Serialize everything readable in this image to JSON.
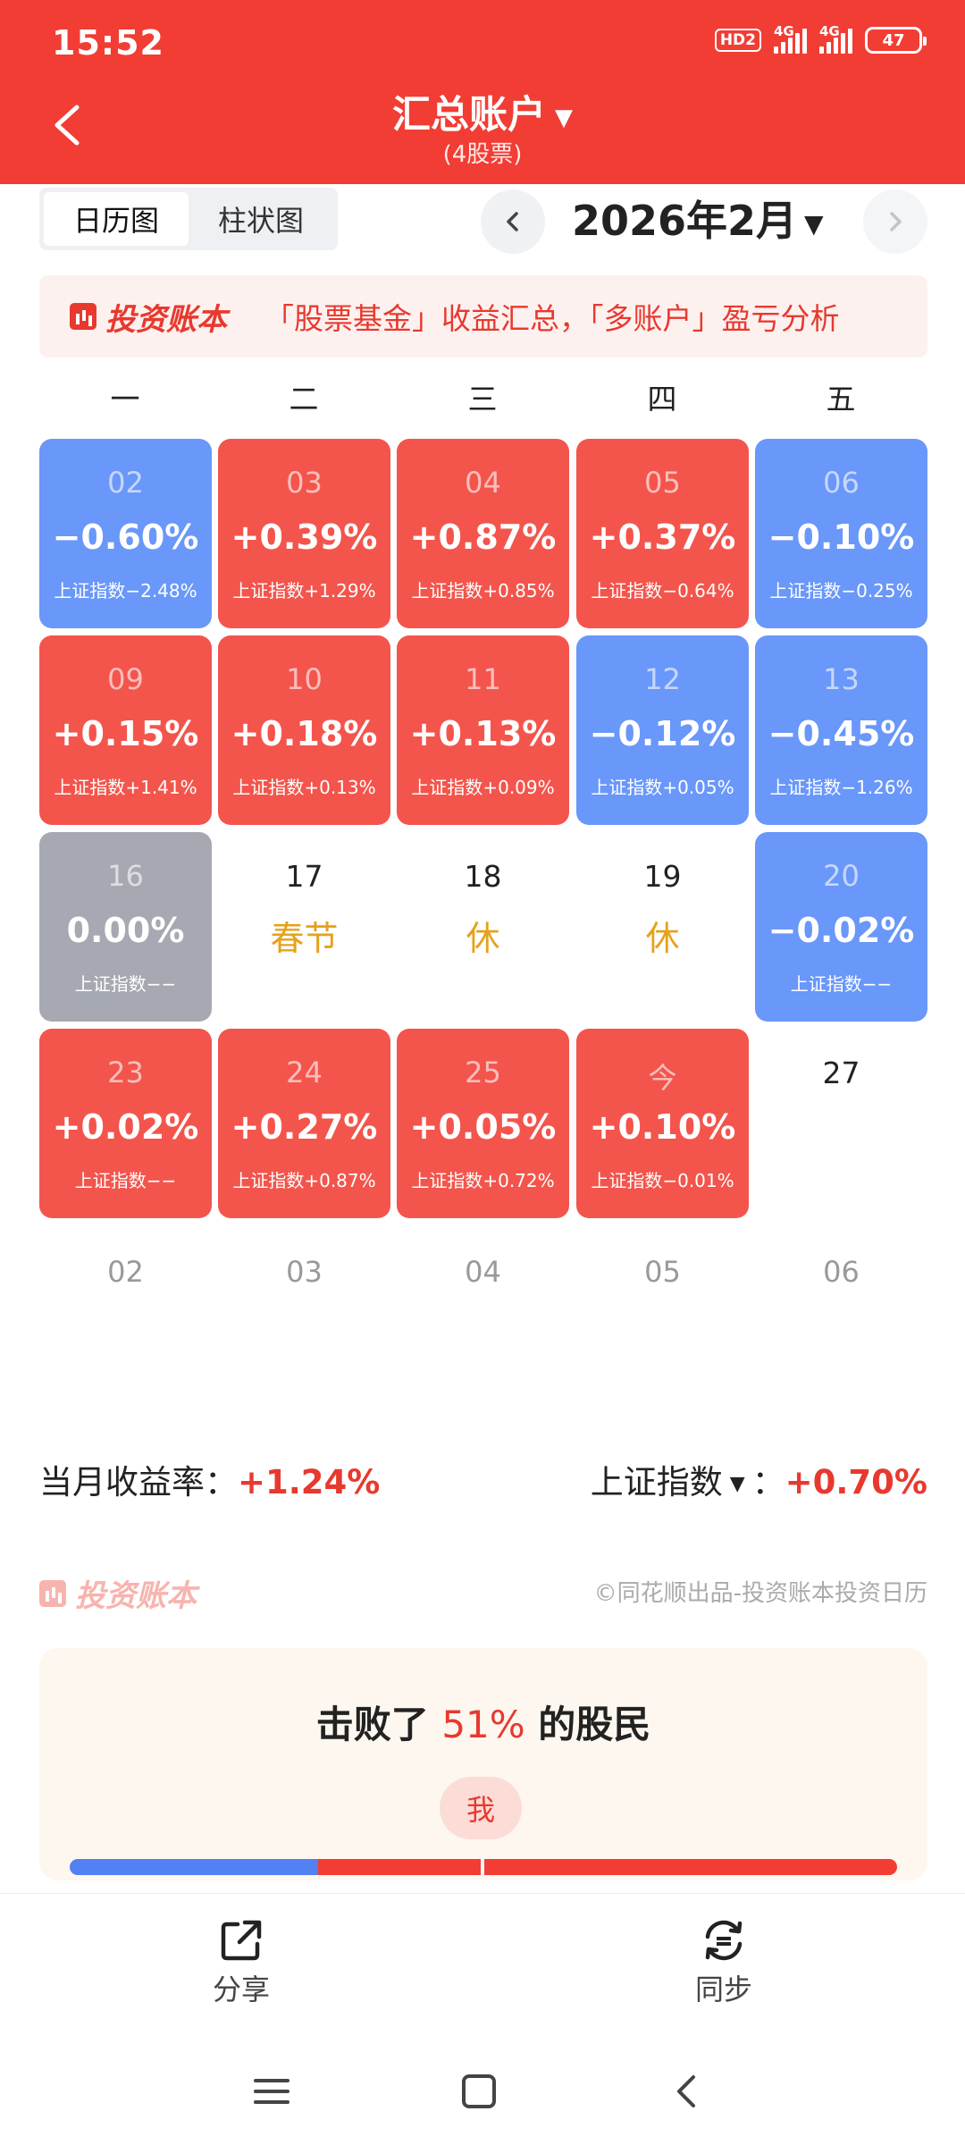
{
  "status": {
    "time": "15:52",
    "hd": "HD2",
    "net1": "4G",
    "net2": "4G",
    "battery": "47"
  },
  "header": {
    "title": "汇总账户",
    "subtitle": "(4股票)"
  },
  "view_toggle": {
    "calendar": "日历图",
    "bar": "柱状图"
  },
  "month": {
    "label": "2026年2月"
  },
  "banner": {
    "brand": "投资账本",
    "text": "「股票基金」收益汇总，「多账户」盈亏分析"
  },
  "weekdays": [
    "一",
    "二",
    "三",
    "四",
    "五"
  ],
  "calendar": [
    [
      {
        "day": "02",
        "pct": "−0.60%",
        "index": "上证指数−2.48%"
      },
      {
        "day": "03",
        "pct": "+0.39%",
        "index": "上证指数+1.29%"
      },
      {
        "day": "04",
        "pct": "+0.87%",
        "index": "上证指数+0.85%"
      },
      {
        "day": "05",
        "pct": "+0.37%",
        "index": "上证指数−0.64%"
      },
      {
        "day": "06",
        "pct": "−0.10%",
        "index": "上证指数−0.25%"
      }
    ],
    [
      {
        "day": "09",
        "pct": "+0.15%",
        "index": "上证指数+1.41%"
      },
      {
        "day": "10",
        "pct": "+0.18%",
        "index": "上证指数+0.13%"
      },
      {
        "day": "11",
        "pct": "+0.13%",
        "index": "上证指数+0.09%"
      },
      {
        "day": "12",
        "pct": "−0.12%",
        "index": "上证指数+0.05%"
      },
      {
        "day": "13",
        "pct": "−0.45%",
        "index": "上证指数−1.26%"
      }
    ],
    [
      {
        "day": "16",
        "pct": "0.00%",
        "index": "上证指数−−"
      },
      {
        "day": "17",
        "pct": "春节",
        "index": ""
      },
      {
        "day": "18",
        "pct": "休",
        "index": ""
      },
      {
        "day": "19",
        "pct": "休",
        "index": ""
      },
      {
        "day": "20",
        "pct": "−0.02%",
        "index": "上证指数−−"
      }
    ],
    [
      {
        "day": "23",
        "pct": "+0.02%",
        "index": "上证指数−−"
      },
      {
        "day": "24",
        "pct": "+0.27%",
        "index": "上证指数+0.87%"
      },
      {
        "day": "25",
        "pct": "+0.05%",
        "index": "上证指数+0.72%"
      },
      {
        "day": "今",
        "pct": "+0.10%",
        "index": "上证指数−0.01%"
      },
      {
        "day": "27",
        "pct": "",
        "index": ""
      }
    ]
  ],
  "next_month_days": [
    "02",
    "03",
    "04",
    "05",
    "06"
  ],
  "summary": {
    "label": "当月收益率：",
    "value": "+1.24%",
    "index_label": "上证指数",
    "index_colon": "：",
    "index_value": "+0.70%"
  },
  "footer_brand": {
    "brand": "投资账本",
    "credit": "©同花顺出品-投资账本投资日历"
  },
  "beat": {
    "pre": "击败了 ",
    "pct": "51%",
    "post": " 的股民",
    "me": "我",
    "fill_fraction": 0.51
  },
  "actions": {
    "share": "分享",
    "sync": "同步"
  },
  "colors": {
    "header": "#f13d34",
    "up": "#f3554c",
    "down": "#6997fa",
    "flat": "#a6a9b1",
    "holiday": "#e6a11d"
  }
}
